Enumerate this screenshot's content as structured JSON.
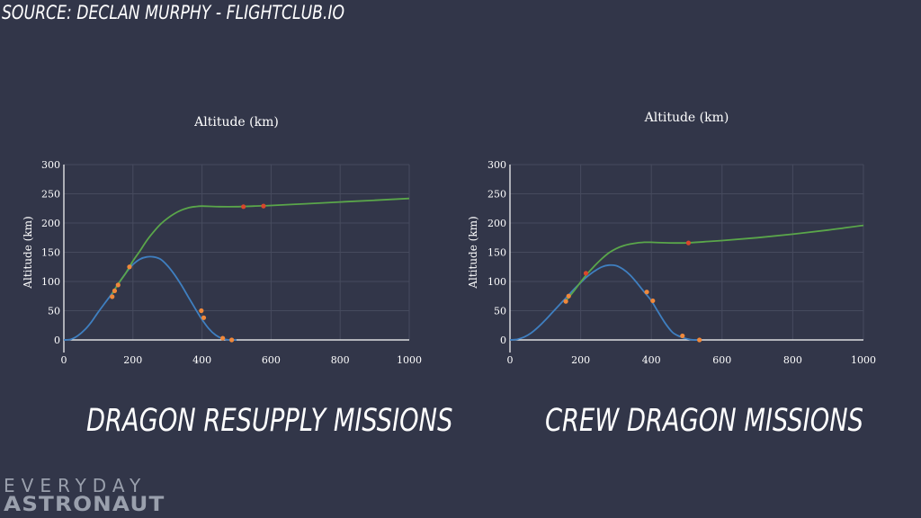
{
  "source_label": "SOURCE:  DECLAN MURPHY - FLIGHTCLUB.IO",
  "captions": {
    "left": "DRAGON RESUPPLY MISSIONS",
    "right": "CREW DRAGON MISSIONS"
  },
  "logo": {
    "top": "EVERYDAY",
    "bottom": "ASTRONAUT"
  },
  "colors": {
    "background": "#323649",
    "orbit_line": "#5aa64a",
    "booster_line": "#3f7fc0",
    "event_marker": "#f0883a",
    "orbit_marker": "#d9472b"
  },
  "chart_data": [
    {
      "type": "line",
      "title": "Altitude (km)",
      "xlabel": "",
      "ylabel": "Altitude (km)",
      "xlim": [
        0,
        1000
      ],
      "ylim": [
        0,
        300
      ],
      "xticks": [
        0,
        200,
        400,
        600,
        800,
        1000
      ],
      "yticks": [
        0,
        50,
        100,
        150,
        200,
        250,
        300
      ],
      "grid": true,
      "series": [
        {
          "id": "booster",
          "color": "#3f7fc0",
          "x": [
            0,
            20,
            40,
            60,
            80,
            100,
            120,
            140,
            160,
            180,
            200,
            220,
            240,
            260,
            280,
            300,
            320,
            340,
            360,
            380,
            400,
            420,
            440,
            460,
            480,
            500
          ],
          "y": [
            0,
            1,
            7,
            17,
            31,
            48,
            64,
            80,
            98,
            115,
            129,
            138,
            142,
            142,
            138,
            127,
            112,
            94,
            74,
            54,
            35,
            19,
            8,
            2,
            0,
            0
          ]
        },
        {
          "id": "second-stage",
          "color": "#5aa64a",
          "x": [
            140,
            160,
            180,
            200,
            220,
            240,
            260,
            280,
            300,
            320,
            340,
            360,
            380,
            400,
            450,
            500,
            550,
            600,
            700,
            800,
            900,
            1000
          ],
          "y": [
            79,
            98,
            115,
            135,
            152,
            170,
            185,
            198,
            208,
            216,
            222,
            226,
            228,
            229,
            228,
            228,
            229,
            230,
            233,
            236,
            239,
            242
          ]
        }
      ],
      "markers": [
        {
          "x": 140,
          "y": 74,
          "kind": "event"
        },
        {
          "x": 147,
          "y": 84,
          "kind": "event"
        },
        {
          "x": 157,
          "y": 94,
          "kind": "event"
        },
        {
          "x": 190,
          "y": 125,
          "kind": "event"
        },
        {
          "x": 398,
          "y": 50,
          "kind": "event"
        },
        {
          "x": 405,
          "y": 38,
          "kind": "event"
        },
        {
          "x": 460,
          "y": 3,
          "kind": "event"
        },
        {
          "x": 486,
          "y": 0,
          "kind": "event"
        },
        {
          "x": 520,
          "y": 228,
          "kind": "orbit"
        },
        {
          "x": 578,
          "y": 229,
          "kind": "orbit"
        }
      ]
    },
    {
      "type": "line",
      "title": "Altitude (km)",
      "xlabel": "",
      "ylabel": "Altitude (km)",
      "xlim": [
        0,
        1000
      ],
      "ylim": [
        0,
        300
      ],
      "xticks": [
        0,
        200,
        400,
        600,
        800,
        1000
      ],
      "yticks": [
        0,
        50,
        100,
        150,
        200,
        250,
        300
      ],
      "grid": true,
      "series": [
        {
          "id": "booster",
          "color": "#3f7fc0",
          "x": [
            0,
            20,
            40,
            60,
            80,
            100,
            120,
            140,
            160,
            180,
            200,
            220,
            240,
            260,
            280,
            300,
            320,
            340,
            360,
            380,
            400,
            420,
            440,
            460,
            480,
            500,
            520,
            540
          ],
          "y": [
            0,
            1,
            5,
            12,
            22,
            34,
            47,
            60,
            73,
            86,
            98,
            109,
            118,
            125,
            128,
            127,
            121,
            111,
            97,
            82,
            67,
            47,
            28,
            13,
            6,
            2,
            0,
            0
          ]
        },
        {
          "id": "second-stage",
          "color": "#5aa64a",
          "x": [
            160,
            180,
            200,
            220,
            240,
            260,
            280,
            300,
            320,
            340,
            360,
            380,
            400,
            450,
            500,
            550,
            600,
            700,
            800,
            900,
            1000
          ],
          "y": [
            68,
            83,
            99,
            114,
            127,
            139,
            149,
            156,
            161,
            164,
            166,
            167,
            167,
            166,
            166,
            168,
            170,
            175,
            181,
            188,
            196
          ]
        }
      ],
      "markers": [
        {
          "x": 158,
          "y": 66,
          "kind": "event"
        },
        {
          "x": 166,
          "y": 75,
          "kind": "event"
        },
        {
          "x": 215,
          "y": 114,
          "kind": "orbit"
        },
        {
          "x": 387,
          "y": 82,
          "kind": "event"
        },
        {
          "x": 404,
          "y": 67,
          "kind": "event"
        },
        {
          "x": 488,
          "y": 7,
          "kind": "event"
        },
        {
          "x": 536,
          "y": 0,
          "kind": "event"
        },
        {
          "x": 505,
          "y": 166,
          "kind": "orbit"
        }
      ]
    }
  ]
}
